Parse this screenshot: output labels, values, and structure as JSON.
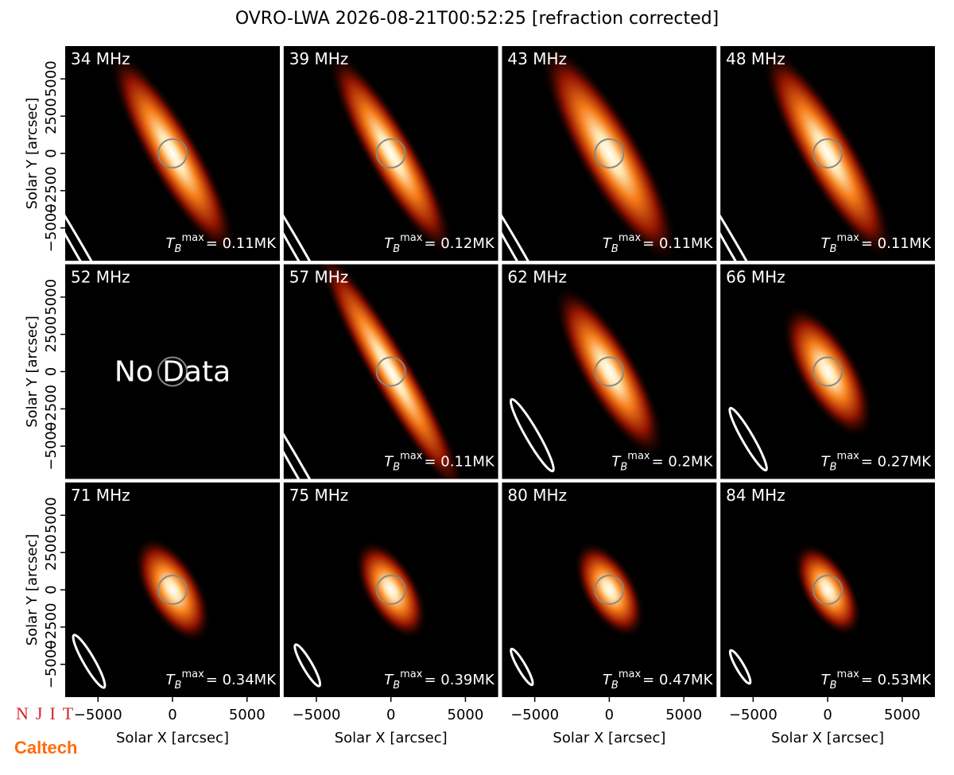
{
  "title": "OVRO-LWA 2026-08-21T00:52:25 [refraction corrected]",
  "logos": [
    "NJIT",
    "Caltech"
  ],
  "chart_data": [
    {
      "type": "image",
      "title": "34 MHz",
      "annotation": {
        "base": "T",
        "sub": "B",
        "sup": "max",
        "text": "= 0.11MK"
      },
      "xlim": [
        -7200,
        7200
      ],
      "ylim": [
        -7200,
        7200
      ],
      "ylabel": "Solar Y [arcsec]",
      "yticks": [
        {
          "value": -5000,
          "label": "−5000"
        },
        {
          "value": -2500,
          "label": "−2500"
        },
        0,
        2500,
        5000
      ]
    },
    {
      "type": "image",
      "title": "39 MHz",
      "annotation": {
        "base": "T",
        "sub": "B",
        "sup": "max",
        "text": "= 0.12MK"
      },
      "xlim": [
        -7200,
        7200
      ],
      "ylim": [
        -7200,
        7200
      ]
    },
    {
      "type": "image",
      "title": "43 MHz",
      "annotation": {
        "base": "T",
        "sub": "B",
        "sup": "max",
        "text": "= 0.11MK"
      },
      "xlim": [
        -7200,
        7200
      ],
      "ylim": [
        -7200,
        7200
      ]
    },
    {
      "type": "image",
      "title": "48 MHz",
      "annotation": {
        "base": "T",
        "sub": "B",
        "sup": "max",
        "text": "= 0.11MK"
      },
      "xlim": [
        -7200,
        7200
      ],
      "ylim": [
        -7200,
        7200
      ]
    },
    {
      "type": "image",
      "title": "52 MHz",
      "note": "No Data",
      "xlim": [
        -7200,
        7200
      ],
      "ylim": [
        -7200,
        7200
      ],
      "ylabel": "Solar Y [arcsec]",
      "yticks": [
        {
          "value": -5000,
          "label": "−5000"
        },
        {
          "value": -2500,
          "label": "−2500"
        },
        0,
        2500,
        5000
      ]
    },
    {
      "type": "image",
      "title": "57 MHz",
      "annotation": {
        "base": "T",
        "sub": "B",
        "sup": "max",
        "text": "= 0.11MK"
      },
      "xlim": [
        -7200,
        7200
      ],
      "ylim": [
        -7200,
        7200
      ]
    },
    {
      "type": "image",
      "title": "62 MHz",
      "annotation": {
        "base": "T",
        "sub": "B",
        "sup": "max",
        "text": "= 0.2MK"
      },
      "xlim": [
        -7200,
        7200
      ],
      "ylim": [
        -7200,
        7200
      ]
    },
    {
      "type": "image",
      "title": "66 MHz",
      "annotation": {
        "base": "T",
        "sub": "B",
        "sup": "max",
        "text": "= 0.27MK"
      },
      "xlim": [
        -7200,
        7200
      ],
      "ylim": [
        -7200,
        7200
      ]
    },
    {
      "type": "image",
      "title": "71 MHz",
      "annotation": {
        "base": "T",
        "sub": "B",
        "sup": "max",
        "text": "= 0.34MK"
      },
      "xlim": [
        -7200,
        7200
      ],
      "ylim": [
        -7200,
        7200
      ],
      "ylabel": "Solar Y [arcsec]",
      "yticks": [
        {
          "value": -5000,
          "label": "−5000"
        },
        {
          "value": -2500,
          "label": "−2500"
        },
        0,
        2500,
        5000
      ],
      "xlabel": "Solar X [arcsec]",
      "xticks": [
        {
          "value": -5000,
          "label": "−5000"
        },
        0,
        5000
      ]
    },
    {
      "type": "image",
      "title": "75 MHz",
      "annotation": {
        "base": "T",
        "sub": "B",
        "sup": "max",
        "text": "= 0.39MK"
      },
      "xlim": [
        -7200,
        7200
      ],
      "ylim": [
        -7200,
        7200
      ],
      "xlabel": "Solar X [arcsec]",
      "xticks": [
        {
          "value": -5000,
          "label": "−5000"
        },
        0,
        5000
      ]
    },
    {
      "type": "image",
      "title": "80 MHz",
      "annotation": {
        "base": "T",
        "sub": "B",
        "sup": "max",
        "text": "= 0.47MK"
      },
      "xlim": [
        -7200,
        7200
      ],
      "ylim": [
        -7200,
        7200
      ],
      "xlabel": "Solar X [arcsec]",
      "xticks": [
        {
          "value": -5000,
          "label": "−5000"
        },
        0,
        5000
      ]
    },
    {
      "type": "image",
      "title": "84 MHz",
      "annotation": {
        "base": "T",
        "sub": "B",
        "sup": "max",
        "text": "= 0.53MK"
      },
      "xlim": [
        -7200,
        7200
      ],
      "ylim": [
        -7200,
        7200
      ],
      "xlabel": "Solar X [arcsec]",
      "xticks": [
        {
          "value": -5000,
          "label": "−5000"
        },
        0,
        5000
      ]
    }
  ]
}
